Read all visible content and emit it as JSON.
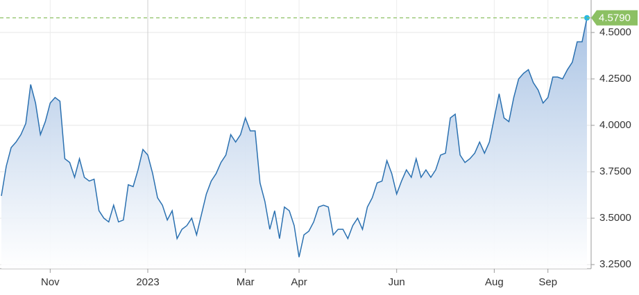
{
  "chart_data": {
    "type": "area",
    "categories": [
      null,
      null,
      null,
      null,
      null,
      null,
      null,
      null,
      null,
      null,
      "Nov",
      null,
      null,
      null,
      null,
      null,
      null,
      null,
      null,
      null,
      null,
      null,
      null,
      null,
      null,
      null,
      null,
      null,
      null,
      null,
      "2023",
      null,
      null,
      null,
      null,
      null,
      null,
      null,
      null,
      null,
      null,
      null,
      null,
      null,
      null,
      null,
      null,
      null,
      null,
      null,
      "Mar",
      null,
      null,
      null,
      null,
      null,
      null,
      null,
      null,
      null,
      null,
      "Apr",
      null,
      null,
      null,
      null,
      null,
      null,
      null,
      null,
      null,
      null,
      null,
      null,
      null,
      null,
      null,
      null,
      null,
      null,
      null,
      "Jun",
      null,
      null,
      null,
      null,
      null,
      null,
      null,
      null,
      null,
      null,
      null,
      null,
      null,
      null,
      null,
      null,
      null,
      null,
      null,
      "Aug",
      null,
      null,
      null,
      null,
      null,
      null,
      null,
      null,
      null,
      null,
      "Sep",
      null,
      null,
      null,
      null,
      null,
      null,
      null,
      null
    ],
    "values": [
      3.62,
      3.78,
      3.88,
      3.91,
      3.95,
      4.01,
      4.22,
      4.12,
      3.95,
      4.02,
      4.12,
      4.15,
      4.13,
      3.82,
      3.8,
      3.72,
      3.82,
      3.72,
      3.7,
      3.71,
      3.54,
      3.5,
      3.48,
      3.57,
      3.48,
      3.49,
      3.68,
      3.67,
      3.76,
      3.87,
      3.84,
      3.74,
      3.61,
      3.57,
      3.49,
      3.54,
      3.39,
      3.44,
      3.46,
      3.5,
      3.41,
      3.52,
      3.63,
      3.7,
      3.74,
      3.8,
      3.84,
      3.95,
      3.91,
      3.95,
      4.04,
      3.97,
      3.97,
      3.69,
      3.59,
      3.44,
      3.54,
      3.39,
      3.56,
      3.54,
      3.46,
      3.29,
      3.41,
      3.43,
      3.48,
      3.56,
      3.57,
      3.56,
      3.41,
      3.44,
      3.44,
      3.39,
      3.46,
      3.5,
      3.44,
      3.56,
      3.61,
      3.69,
      3.7,
      3.81,
      3.74,
      3.63,
      3.7,
      3.76,
      3.72,
      3.82,
      3.72,
      3.76,
      3.72,
      3.76,
      3.84,
      3.85,
      4.04,
      4.06,
      3.84,
      3.8,
      3.82,
      3.85,
      3.91,
      3.85,
      3.91,
      4.04,
      4.17,
      4.04,
      4.02,
      4.15,
      4.25,
      4.28,
      4.3,
      4.23,
      4.19,
      4.12,
      4.15,
      4.26,
      4.26,
      4.25,
      4.3,
      4.34,
      4.45,
      4.45,
      4.579
    ],
    "color": "#2a70b0",
    "ylim": [
      3.228,
      4.675
    ],
    "yticks": [
      {
        "value": 3.25,
        "label": "3.2500"
      },
      {
        "value": 3.5,
        "label": "3.5000"
      },
      {
        "value": 3.75,
        "label": "3.7500"
      },
      {
        "value": 4.0,
        "label": "4.0000"
      },
      {
        "value": 4.25,
        "label": "4.2500"
      },
      {
        "value": 4.5,
        "label": "4.5000"
      }
    ],
    "grid": true,
    "reference_line": {
      "value": 4.579,
      "label": "4.5790",
      "color": "#8cc063"
    }
  }
}
